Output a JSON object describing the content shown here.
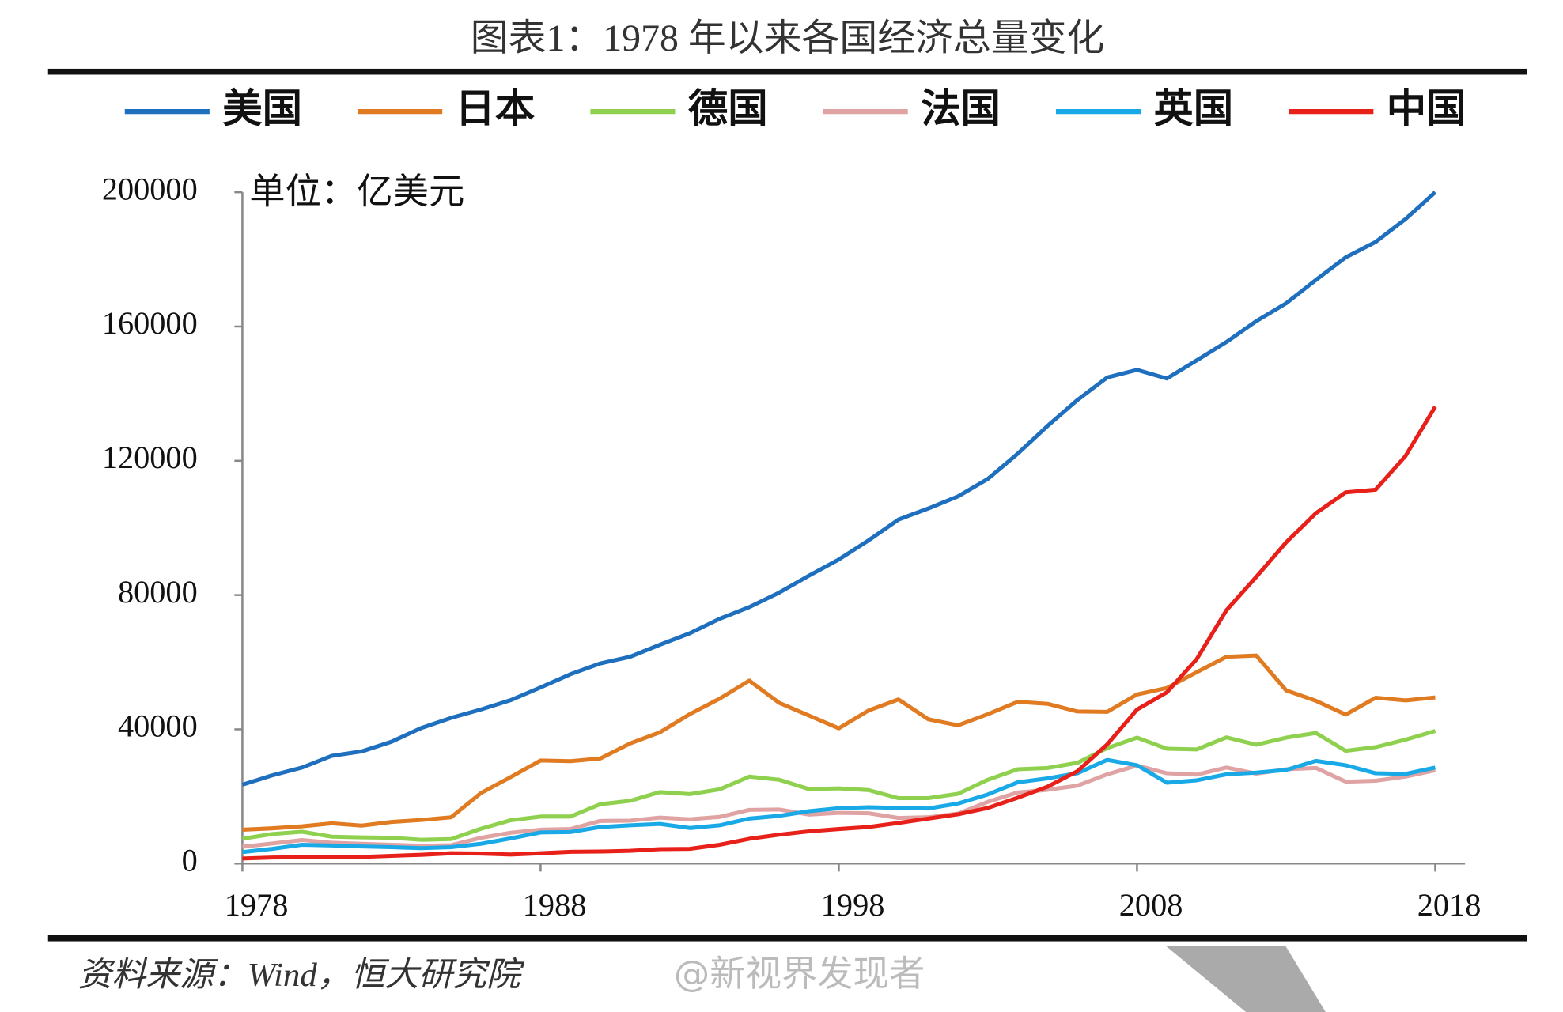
{
  "chart_data": {
    "type": "line",
    "title": "图表1：1978 年以来各国经济总量变化",
    "unit": "单位：亿美元",
    "source": "资料来源：Wind，恒大研究院",
    "watermark": "@新视界发现者",
    "x": [
      1978,
      1979,
      1980,
      1981,
      1982,
      1983,
      1984,
      1985,
      1986,
      1987,
      1988,
      1989,
      1990,
      1991,
      1992,
      1993,
      1994,
      1995,
      1996,
      1997,
      1998,
      1999,
      2000,
      2001,
      2002,
      2003,
      2004,
      2005,
      2006,
      2007,
      2008,
      2009,
      2010,
      2011,
      2012,
      2013,
      2014,
      2015,
      2016,
      2017,
      2018
    ],
    "xlim": [
      1978,
      2019
    ],
    "xticks": [
      1978,
      1988,
      1998,
      2008,
      2018
    ],
    "ylim": [
      0,
      200000
    ],
    "yticks": [
      0,
      40000,
      80000,
      120000,
      160000,
      200000
    ],
    "series": [
      {
        "name": "美国",
        "color": "#1f6fbf",
        "values": [
          23500,
          26300,
          28600,
          32100,
          33400,
          36300,
          40400,
          43400,
          45900,
          48700,
          52500,
          56400,
          59600,
          61600,
          65200,
          68600,
          72900,
          76400,
          80700,
          85800,
          90600,
          96300,
          102500,
          105800,
          109400,
          114600,
          122100,
          130400,
          138100,
          144800,
          147100,
          144500,
          149900,
          155400,
          161600,
          166900,
          173900,
          180600,
          185200,
          192000,
          200000
        ]
      },
      {
        "name": "日本",
        "color": "#e07b22",
        "values": [
          10100,
          10500,
          11100,
          12000,
          11300,
          12400,
          13000,
          13800,
          21000,
          25800,
          30700,
          30500,
          31300,
          35800,
          39100,
          44500,
          49100,
          54500,
          47900,
          44100,
          40300,
          45600,
          48900,
          43000,
          41200,
          44500,
          48200,
          47600,
          45300,
          45200,
          50400,
          52300,
          57000,
          61600,
          62000,
          51600,
          48500,
          44400,
          49400,
          48600,
          49500
        ]
      },
      {
        "name": "德国",
        "color": "#8fd14f",
        "values": [
          7400,
          8800,
          9500,
          8000,
          7800,
          7700,
          7100,
          7300,
          10400,
          12900,
          14000,
          14000,
          17700,
          18700,
          21300,
          20700,
          22100,
          25900,
          25000,
          22200,
          22400,
          21900,
          19500,
          19500,
          20800,
          25000,
          28100,
          28500,
          30000,
          34400,
          37500,
          34200,
          34000,
          37600,
          35400,
          37500,
          38900,
          33600,
          34700,
          36900,
          39500
        ]
      },
      {
        "name": "法国",
        "color": "#e0a3a3",
        "values": [
          5000,
          6000,
          7000,
          6200,
          5900,
          5600,
          5300,
          5500,
          7700,
          9200,
          10100,
          10300,
          12700,
          12800,
          13700,
          13200,
          13900,
          16000,
          16100,
          14600,
          15100,
          15000,
          13600,
          13800,
          14900,
          18400,
          21200,
          22000,
          23200,
          26600,
          29200,
          26900,
          26500,
          28600,
          26800,
          28100,
          28500,
          24400,
          24700,
          25900,
          27800
        ]
      },
      {
        "name": "英国",
        "color": "#19a9e6",
        "values": [
          3400,
          4400,
          5600,
          5400,
          5100,
          4900,
          4600,
          4900,
          5900,
          7500,
          9300,
          9400,
          10900,
          11400,
          11800,
          10600,
          11400,
          13400,
          14200,
          15600,
          16500,
          16800,
          16600,
          16400,
          17900,
          20600,
          24200,
          25400,
          26900,
          30900,
          29300,
          24100,
          24800,
          26600,
          27100,
          27900,
          30600,
          29300,
          26900,
          26700,
          28600
        ]
      },
      {
        "name": "中国",
        "color": "#e8201a",
        "values": [
          1500,
          1800,
          1900,
          2000,
          2000,
          2300,
          2600,
          3100,
          3000,
          2700,
          3100,
          3500,
          3600,
          3800,
          4300,
          4400,
          5600,
          7400,
          8600,
          9600,
          10300,
          10900,
          12100,
          13400,
          14700,
          16600,
          19600,
          22900,
          27500,
          35500,
          45900,
          51000,
          60900,
          75500,
          85400,
          95700,
          104400,
          110600,
          111400,
          121400,
          136100
        ]
      }
    ]
  }
}
